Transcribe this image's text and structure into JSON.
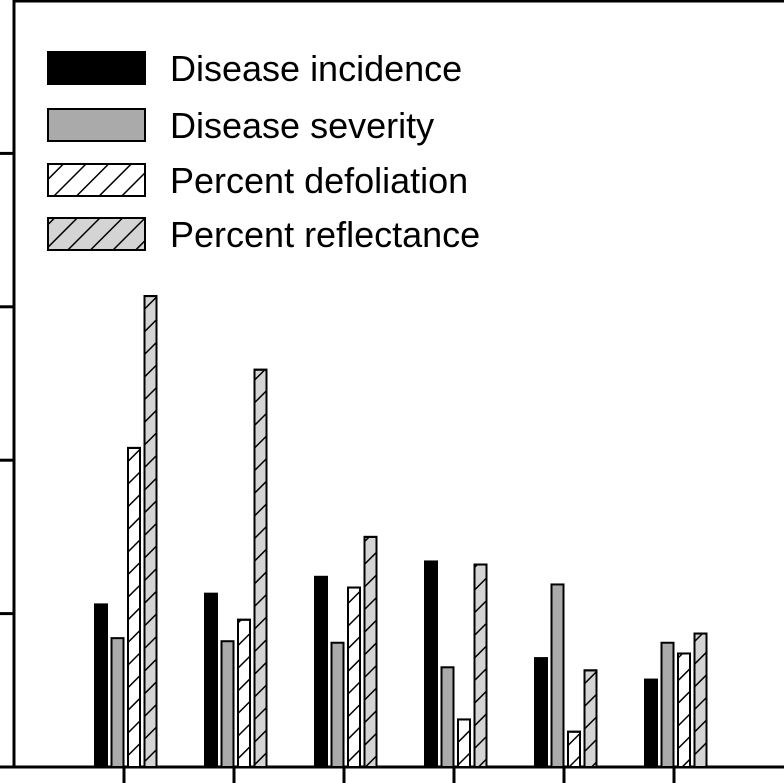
{
  "chart_data": {
    "type": "bar",
    "title": "",
    "xlabel": "",
    "ylabel": "",
    "categories": [
      "",
      "",
      "",
      "",
      "",
      ""
    ],
    "ylim": [
      0,
      5
    ],
    "y_ticks": [
      0,
      1,
      2,
      3,
      4,
      5
    ],
    "grid": false,
    "legend_position": "top-left",
    "series": [
      {
        "name": "Disease incidence",
        "values": [
          1.06,
          1.13,
          1.24,
          1.34,
          0.71,
          0.57
        ],
        "fill": "#000000",
        "hatch": false
      },
      {
        "name": "Disease severity",
        "values": [
          0.84,
          0.82,
          0.81,
          0.65,
          1.19,
          0.81
        ],
        "fill": "#aaaaaa",
        "hatch": false
      },
      {
        "name": "Percent defoliation",
        "values": [
          2.08,
          0.96,
          1.17,
          0.31,
          0.23,
          0.74
        ],
        "fill": "#ffffff",
        "hatch": true
      },
      {
        "name": "Percent reflectance",
        "values": [
          3.07,
          2.59,
          1.5,
          1.32,
          0.63,
          0.87
        ],
        "fill": "#d4d4d4",
        "hatch": true
      }
    ]
  }
}
